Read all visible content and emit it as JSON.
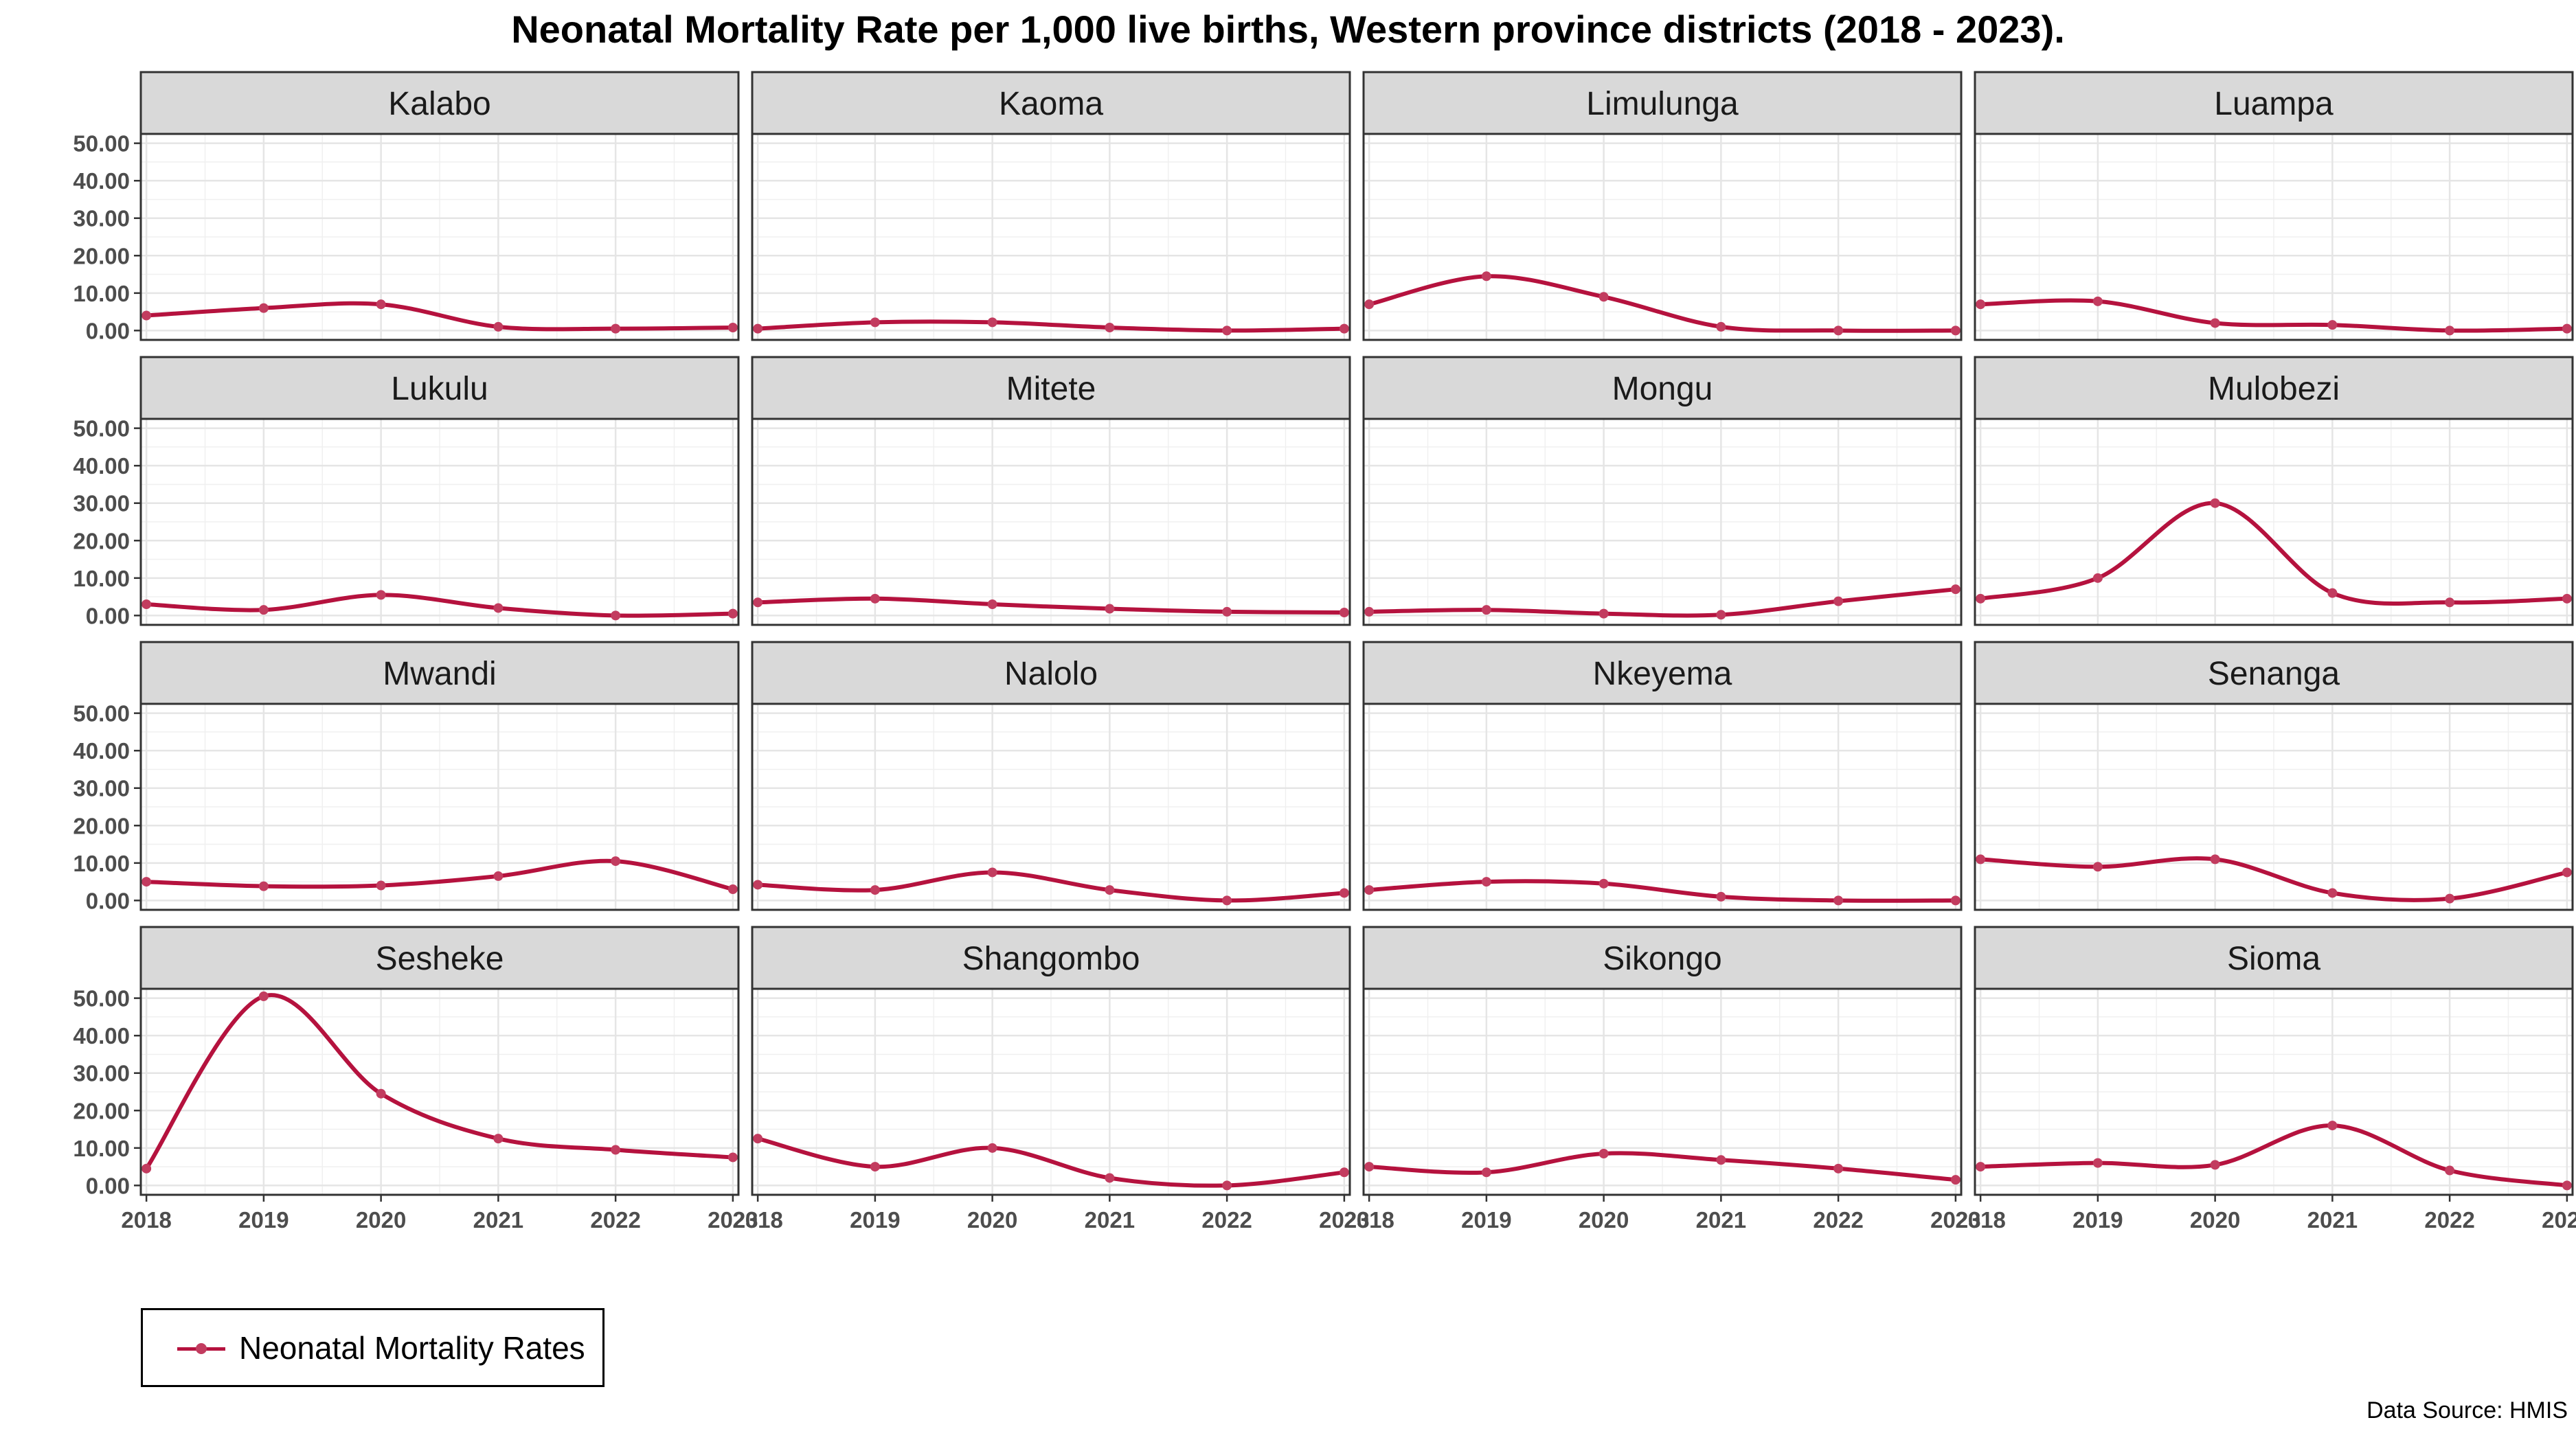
{
  "chart_data": {
    "type": "line",
    "title": "Neonatal Mortality Rate per 1,000 live births, Western province districts (2018 - 2023).",
    "caption": "Data Source: HMIS",
    "x": [
      2018,
      2019,
      2020,
      2021,
      2022,
      2023
    ],
    "x_tick_labels": [
      "2018",
      "2019",
      "2020",
      "2021",
      "2022",
      "2023"
    ],
    "y_tick_labels": [
      "0.00",
      "10.00",
      "20.00",
      "30.00",
      "40.00",
      "50.00"
    ],
    "ylim": [
      -2.5,
      52.5
    ],
    "grid": true,
    "legend": {
      "position": "bottom-left",
      "label": "Neonatal Mortality Rates"
    },
    "line_color": "#b5123e",
    "point_color": "#c23c5f",
    "facets": [
      {
        "name": "Kalabo",
        "values": [
          4.0,
          6.0,
          7.0,
          1.0,
          0.5,
          0.8
        ]
      },
      {
        "name": "Kaoma",
        "values": [
          0.5,
          2.2,
          2.2,
          0.8,
          0.0,
          0.5
        ]
      },
      {
        "name": "Limulunga",
        "values": [
          7.0,
          14.5,
          9.0,
          1.0,
          0.0,
          0.0
        ]
      },
      {
        "name": "Luampa",
        "values": [
          7.0,
          7.8,
          2.0,
          1.5,
          0.0,
          0.5
        ]
      },
      {
        "name": "Lukulu",
        "values": [
          3.0,
          1.5,
          5.5,
          2.0,
          0.0,
          0.5
        ]
      },
      {
        "name": "Mitete",
        "values": [
          3.5,
          4.5,
          3.0,
          1.8,
          1.0,
          0.8
        ]
      },
      {
        "name": "Mongu",
        "values": [
          1.0,
          1.5,
          0.5,
          0.2,
          3.8,
          7.0
        ]
      },
      {
        "name": "Mulobezi",
        "values": [
          4.5,
          10.0,
          30.0,
          6.0,
          3.5,
          4.5
        ]
      },
      {
        "name": "Mwandi",
        "values": [
          5.0,
          3.8,
          4.0,
          6.5,
          10.5,
          3.0
        ]
      },
      {
        "name": "Nalolo",
        "values": [
          4.2,
          2.8,
          7.5,
          2.8,
          0.0,
          2.0
        ]
      },
      {
        "name": "Nkeyema",
        "values": [
          2.8,
          5.0,
          4.5,
          1.0,
          0.0,
          0.0
        ]
      },
      {
        "name": "Senanga",
        "values": [
          11.0,
          9.0,
          11.0,
          2.0,
          0.5,
          7.5
        ]
      },
      {
        "name": "Sesheke",
        "values": [
          4.5,
          50.5,
          24.5,
          12.5,
          9.5,
          7.5
        ]
      },
      {
        "name": "Shangombo",
        "values": [
          12.5,
          5.0,
          10.0,
          2.0,
          0.0,
          3.5
        ]
      },
      {
        "name": "Sikongo",
        "values": [
          5.0,
          3.5,
          8.5,
          6.8,
          4.5,
          1.5
        ]
      },
      {
        "name": "Sioma",
        "values": [
          5.0,
          6.0,
          5.5,
          16.0,
          4.0,
          0.0
        ]
      }
    ]
  }
}
